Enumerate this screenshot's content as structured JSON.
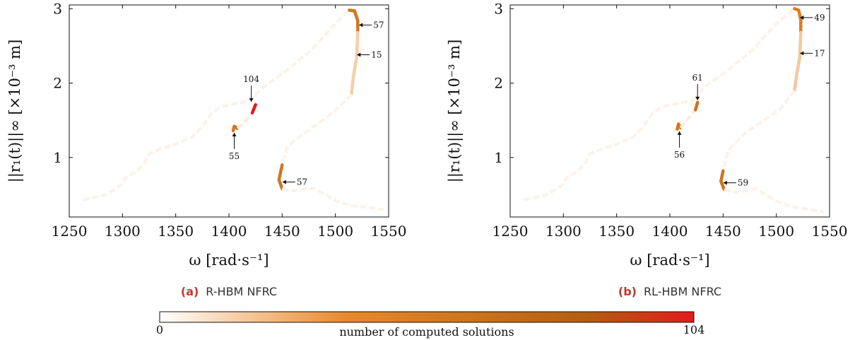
{
  "colormap": {
    "low": "#ffffff",
    "mid": "#e8892c",
    "high_dark": "#b35f10",
    "max": "#e31a1c",
    "tail": "#e8892c"
  },
  "colorbar": {
    "min": 0,
    "max": 104,
    "min_label": "0",
    "max_label": "104",
    "label": "number of computed solutions"
  },
  "chart_data": [
    {
      "type": "line",
      "caption_tag": "(a)",
      "caption_text": "R-HBM NFRC",
      "xlabel": "ω [rad·s⁻¹]",
      "ylabel": "||r₁(t)||∞ [×10⁻³ m]",
      "xlim": [
        1250,
        1550
      ],
      "ylim": [
        0.2,
        3.05
      ],
      "xticks": [
        1250,
        1300,
        1350,
        1400,
        1450,
        1500,
        1550
      ],
      "yticks": [
        1,
        2,
        3
      ],
      "grid": false,
      "segments": [
        {
          "points": [
            [
              1263,
              0.43
            ],
            [
              1285,
              0.5
            ],
            [
              1298,
              0.62
            ],
            [
              1305,
              0.76
            ],
            [
              1312,
              0.8
            ],
            [
              1320,
              0.91
            ],
            [
              1325,
              1.05
            ],
            [
              1335,
              1.11
            ],
            [
              1350,
              1.18
            ],
            [
              1365,
              1.27
            ],
            [
              1375,
              1.42
            ],
            [
              1383,
              1.58
            ],
            [
              1392,
              1.68
            ],
            [
              1405,
              1.72
            ],
            [
              1418,
              1.76
            ]
          ],
          "count": 4
        },
        {
          "points": [
            [
              1418,
              1.76
            ],
            [
              1433,
              1.95
            ],
            [
              1455,
              2.18
            ],
            [
              1478,
              2.45
            ],
            [
              1500,
              2.8
            ],
            [
              1513,
              2.98
            ]
          ],
          "count": 4
        },
        {
          "points": [
            [
              1513,
              2.98
            ],
            [
              1518,
              2.97
            ],
            [
              1521,
              2.84
            ],
            [
              1521,
              2.68
            ]
          ],
          "count": 57
        },
        {
          "points": [
            [
              1521,
              2.68
            ],
            [
              1520,
              2.35
            ],
            [
              1517,
              2.1
            ],
            [
              1515,
              1.85
            ]
          ],
          "count": 15
        },
        {
          "points": [
            [
              1515,
              1.85
            ],
            [
              1503,
              1.67
            ],
            [
              1488,
              1.5
            ],
            [
              1470,
              1.32
            ],
            [
              1455,
              1.15
            ],
            [
              1450,
              0.9
            ]
          ],
          "count": 4
        },
        {
          "points": [
            [
              1450,
              0.9
            ],
            [
              1447,
              0.7
            ],
            [
              1450,
              0.58
            ]
          ],
          "count": 57
        },
        {
          "points": [
            [
              1450,
              0.58
            ],
            [
              1462,
              0.55
            ],
            [
              1472,
              0.58
            ],
            [
              1479,
              0.59
            ],
            [
              1488,
              0.52
            ],
            [
              1500,
              0.42
            ],
            [
              1515,
              0.35
            ],
            [
              1530,
              0.33
            ],
            [
              1545,
              0.3
            ]
          ],
          "count": 4
        },
        {
          "points": [
            [
              1404,
              1.36
            ],
            [
              1405,
              1.42
            ],
            [
              1408,
              1.39
            ]
          ],
          "count": 55
        },
        {
          "points": [
            [
              1408,
              1.39
            ],
            [
              1415,
              1.48
            ],
            [
              1422,
              1.6
            ]
          ],
          "count": 6
        },
        {
          "points": [
            [
              1422,
              1.6
            ],
            [
              1425,
              1.71
            ]
          ],
          "count": 104
        }
      ],
      "annotations": [
        {
          "label": "57",
          "x": 1521,
          "y": 2.78,
          "dir": "left"
        },
        {
          "label": "15",
          "x": 1519,
          "y": 2.38,
          "dir": "left"
        },
        {
          "label": "104",
          "x": 1421,
          "y": 1.72,
          "dir": "down"
        },
        {
          "label": "55",
          "x": 1405,
          "y": 1.36,
          "dir": "up"
        },
        {
          "label": "57",
          "x": 1449,
          "y": 0.67,
          "dir": "left"
        }
      ]
    },
    {
      "type": "line",
      "caption_tag": "(b)",
      "caption_text": "RL-HBM NFRC",
      "xlabel": "ω [rad·s⁻¹]",
      "ylabel": "||r₁(t)||∞ [×10⁻³ m]",
      "xlim": [
        1250,
        1550
      ],
      "ylim": [
        0.2,
        3.05
      ],
      "xticks": [
        1250,
        1300,
        1350,
        1400,
        1450,
        1500,
        1550
      ],
      "yticks": [
        1,
        2,
        3
      ],
      "grid": false,
      "segments": [
        {
          "points": [
            [
              1263,
              0.43
            ],
            [
              1285,
              0.5
            ],
            [
              1298,
              0.62
            ],
            [
              1305,
              0.76
            ],
            [
              1312,
              0.8
            ],
            [
              1320,
              0.91
            ],
            [
              1325,
              1.05
            ],
            [
              1335,
              1.11
            ],
            [
              1350,
              1.18
            ],
            [
              1365,
              1.27
            ],
            [
              1375,
              1.42
            ],
            [
              1383,
              1.58
            ],
            [
              1392,
              1.68
            ],
            [
              1405,
              1.72
            ],
            [
              1422,
              1.77
            ]
          ],
          "count": 4
        },
        {
          "points": [
            [
              1422,
              1.77
            ],
            [
              1433,
              1.95
            ],
            [
              1455,
              2.18
            ],
            [
              1478,
              2.45
            ],
            [
              1500,
              2.8
            ],
            [
              1517,
              3.0
            ]
          ],
          "count": 4
        },
        {
          "points": [
            [
              1517,
              3.0
            ],
            [
              1521,
              2.98
            ],
            [
              1523,
              2.85
            ],
            [
              1523,
              2.68
            ]
          ],
          "count": 49
        },
        {
          "points": [
            [
              1523,
              2.68
            ],
            [
              1522,
              2.35
            ],
            [
              1519,
              2.1
            ],
            [
              1517,
              1.9
            ]
          ],
          "count": 17
        },
        {
          "points": [
            [
              1517,
              1.9
            ],
            [
              1505,
              1.67
            ],
            [
              1488,
              1.5
            ],
            [
              1470,
              1.32
            ],
            [
              1455,
              1.1
            ],
            [
              1450,
              0.82
            ]
          ],
          "count": 4
        },
        {
          "points": [
            [
              1450,
              0.82
            ],
            [
              1448,
              0.68
            ],
            [
              1451,
              0.57
            ]
          ],
          "count": 59
        },
        {
          "points": [
            [
              1451,
              0.57
            ],
            [
              1462,
              0.53
            ],
            [
              1472,
              0.55
            ],
            [
              1480,
              0.58
            ],
            [
              1490,
              0.5
            ],
            [
              1502,
              0.4
            ],
            [
              1517,
              0.33
            ],
            [
              1532,
              0.3
            ],
            [
              1545,
              0.27
            ]
          ],
          "count": 4
        },
        {
          "points": [
            [
              1407,
              1.38
            ],
            [
              1408,
              1.45
            ],
            [
              1410,
              1.4
            ]
          ],
          "count": 56
        },
        {
          "points": [
            [
              1410,
              1.4
            ],
            [
              1417,
              1.52
            ],
            [
              1424,
              1.64
            ]
          ],
          "count": 6
        },
        {
          "points": [
            [
              1424,
              1.64
            ],
            [
              1426,
              1.74
            ]
          ],
          "count": 61
        }
      ],
      "annotations": [
        {
          "label": "49",
          "x": 1521,
          "y": 2.88,
          "dir": "left"
        },
        {
          "label": "17",
          "x": 1521,
          "y": 2.4,
          "dir": "left"
        },
        {
          "label": "61",
          "x": 1426,
          "y": 1.74,
          "dir": "down"
        },
        {
          "label": "56",
          "x": 1409,
          "y": 1.38,
          "dir": "up"
        },
        {
          "label": "59",
          "x": 1449,
          "y": 0.66,
          "dir": "left"
        }
      ]
    }
  ]
}
